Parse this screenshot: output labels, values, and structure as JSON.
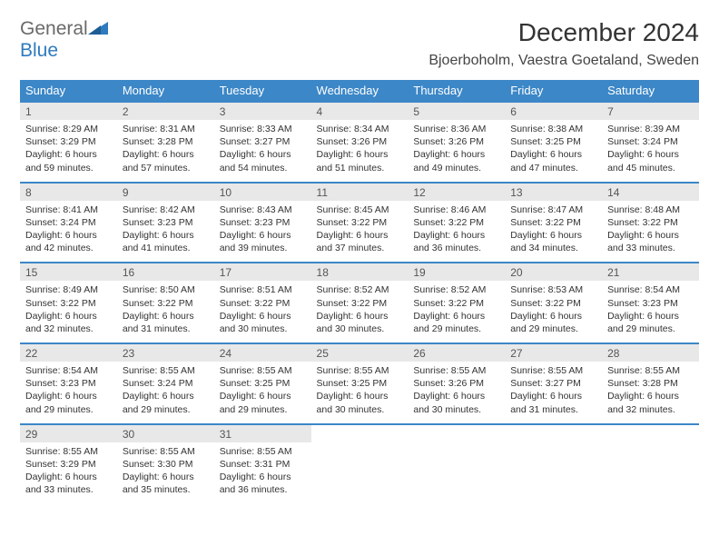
{
  "logo": {
    "text1": "General",
    "text2": "Blue"
  },
  "title": "December 2024",
  "location": "Bjoerboholm, Vaestra Goetaland, Sweden",
  "colors": {
    "header_bg": "#3c87c7",
    "header_text": "#ffffff",
    "daynum_bg": "#e8e8e8",
    "border": "#3c87c7",
    "logo_gray": "#6a6a6a",
    "logo_blue": "#2f7bbf",
    "page_bg": "#ffffff"
  },
  "weekdays": [
    "Sunday",
    "Monday",
    "Tuesday",
    "Wednesday",
    "Thursday",
    "Friday",
    "Saturday"
  ],
  "weeks": [
    [
      {
        "d": "1",
        "sr": "8:29 AM",
        "ss": "3:29 PM",
        "dl": "6 hours and 59 minutes."
      },
      {
        "d": "2",
        "sr": "8:31 AM",
        "ss": "3:28 PM",
        "dl": "6 hours and 57 minutes."
      },
      {
        "d": "3",
        "sr": "8:33 AM",
        "ss": "3:27 PM",
        "dl": "6 hours and 54 minutes."
      },
      {
        "d": "4",
        "sr": "8:34 AM",
        "ss": "3:26 PM",
        "dl": "6 hours and 51 minutes."
      },
      {
        "d": "5",
        "sr": "8:36 AM",
        "ss": "3:26 PM",
        "dl": "6 hours and 49 minutes."
      },
      {
        "d": "6",
        "sr": "8:38 AM",
        "ss": "3:25 PM",
        "dl": "6 hours and 47 minutes."
      },
      {
        "d": "7",
        "sr": "8:39 AM",
        "ss": "3:24 PM",
        "dl": "6 hours and 45 minutes."
      }
    ],
    [
      {
        "d": "8",
        "sr": "8:41 AM",
        "ss": "3:24 PM",
        "dl": "6 hours and 42 minutes."
      },
      {
        "d": "9",
        "sr": "8:42 AM",
        "ss": "3:23 PM",
        "dl": "6 hours and 41 minutes."
      },
      {
        "d": "10",
        "sr": "8:43 AM",
        "ss": "3:23 PM",
        "dl": "6 hours and 39 minutes."
      },
      {
        "d": "11",
        "sr": "8:45 AM",
        "ss": "3:22 PM",
        "dl": "6 hours and 37 minutes."
      },
      {
        "d": "12",
        "sr": "8:46 AM",
        "ss": "3:22 PM",
        "dl": "6 hours and 36 minutes."
      },
      {
        "d": "13",
        "sr": "8:47 AM",
        "ss": "3:22 PM",
        "dl": "6 hours and 34 minutes."
      },
      {
        "d": "14",
        "sr": "8:48 AM",
        "ss": "3:22 PM",
        "dl": "6 hours and 33 minutes."
      }
    ],
    [
      {
        "d": "15",
        "sr": "8:49 AM",
        "ss": "3:22 PM",
        "dl": "6 hours and 32 minutes."
      },
      {
        "d": "16",
        "sr": "8:50 AM",
        "ss": "3:22 PM",
        "dl": "6 hours and 31 minutes."
      },
      {
        "d": "17",
        "sr": "8:51 AM",
        "ss": "3:22 PM",
        "dl": "6 hours and 30 minutes."
      },
      {
        "d": "18",
        "sr": "8:52 AM",
        "ss": "3:22 PM",
        "dl": "6 hours and 30 minutes."
      },
      {
        "d": "19",
        "sr": "8:52 AM",
        "ss": "3:22 PM",
        "dl": "6 hours and 29 minutes."
      },
      {
        "d": "20",
        "sr": "8:53 AM",
        "ss": "3:22 PM",
        "dl": "6 hours and 29 minutes."
      },
      {
        "d": "21",
        "sr": "8:54 AM",
        "ss": "3:23 PM",
        "dl": "6 hours and 29 minutes."
      }
    ],
    [
      {
        "d": "22",
        "sr": "8:54 AM",
        "ss": "3:23 PM",
        "dl": "6 hours and 29 minutes."
      },
      {
        "d": "23",
        "sr": "8:55 AM",
        "ss": "3:24 PM",
        "dl": "6 hours and 29 minutes."
      },
      {
        "d": "24",
        "sr": "8:55 AM",
        "ss": "3:25 PM",
        "dl": "6 hours and 29 minutes."
      },
      {
        "d": "25",
        "sr": "8:55 AM",
        "ss": "3:25 PM",
        "dl": "6 hours and 30 minutes."
      },
      {
        "d": "26",
        "sr": "8:55 AM",
        "ss": "3:26 PM",
        "dl": "6 hours and 30 minutes."
      },
      {
        "d": "27",
        "sr": "8:55 AM",
        "ss": "3:27 PM",
        "dl": "6 hours and 31 minutes."
      },
      {
        "d": "28",
        "sr": "8:55 AM",
        "ss": "3:28 PM",
        "dl": "6 hours and 32 minutes."
      }
    ],
    [
      {
        "d": "29",
        "sr": "8:55 AM",
        "ss": "3:29 PM",
        "dl": "6 hours and 33 minutes."
      },
      {
        "d": "30",
        "sr": "8:55 AM",
        "ss": "3:30 PM",
        "dl": "6 hours and 35 minutes."
      },
      {
        "d": "31",
        "sr": "8:55 AM",
        "ss": "3:31 PM",
        "dl": "6 hours and 36 minutes."
      },
      null,
      null,
      null,
      null
    ]
  ],
  "labels": {
    "sunrise": "Sunrise:",
    "sunset": "Sunset:",
    "daylight": "Daylight:"
  }
}
